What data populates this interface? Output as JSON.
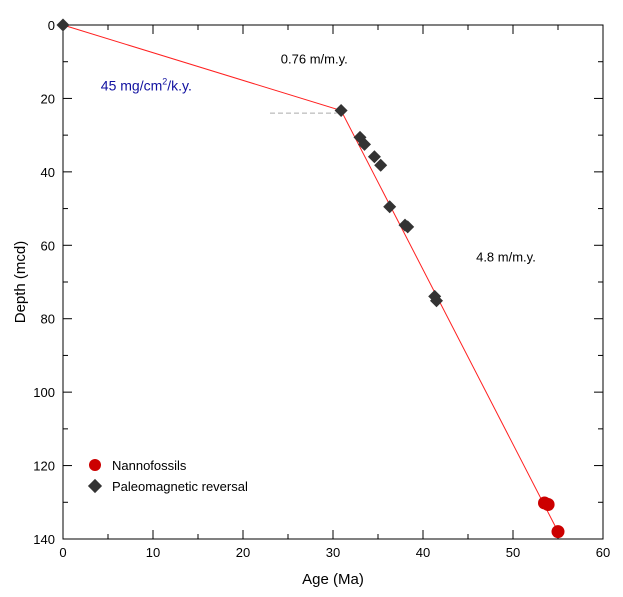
{
  "chart_data": {
    "type": "scatter",
    "xlabel": "Age (Ma)",
    "ylabel": "Depth (mcd)",
    "xlim": [
      0,
      60
    ],
    "ylim": [
      0,
      140
    ],
    "y_inverted": true,
    "xticks": [
      0,
      10,
      20,
      30,
      40,
      50,
      60
    ],
    "yticks": [
      0,
      20,
      40,
      60,
      80,
      100,
      120,
      140
    ],
    "grid": false,
    "legend_position": "bottom-left",
    "series": [
      {
        "name": "Nannofossils",
        "marker": "circle",
        "color": "#cc0000",
        "points": [
          {
            "x": 53.5,
            "y": 130.2
          },
          {
            "x": 53.9,
            "y": 130.6
          },
          {
            "x": 55.0,
            "y": 138.0
          }
        ]
      },
      {
        "name": "Paleomagnetic reversal",
        "marker": "diamond",
        "color": "#333333",
        "points": [
          {
            "x": 0.0,
            "y": 0.0
          },
          {
            "x": 30.9,
            "y": 23.3
          },
          {
            "x": 33.0,
            "y": 30.6
          },
          {
            "x": 33.5,
            "y": 32.5
          },
          {
            "x": 34.6,
            "y": 35.9
          },
          {
            "x": 35.3,
            "y": 38.2
          },
          {
            "x": 36.3,
            "y": 49.5
          },
          {
            "x": 38.0,
            "y": 54.5
          },
          {
            "x": 38.3,
            "y": 55.0
          },
          {
            "x": 41.3,
            "y": 73.9
          },
          {
            "x": 41.5,
            "y": 75.1
          }
        ]
      }
    ],
    "age_model_line": {
      "color": "#ff2020",
      "points": [
        {
          "x": 0.0,
          "y": 0.0
        },
        {
          "x": 30.9,
          "y": 23.3
        },
        {
          "x": 55.0,
          "y": 138.0
        }
      ]
    },
    "reference_dashed_line": {
      "color": "#aaaaaa",
      "points": [
        {
          "x": 23.0,
          "y": 24.0
        },
        {
          "x": 30.4,
          "y": 24.0
        }
      ]
    },
    "annotations": [
      {
        "id": "rate1",
        "text": "0.76 m/m.y.",
        "x": 24.2,
        "y": 10.5,
        "color": "#000000"
      },
      {
        "id": "mar",
        "text_main": "45 mg/cm",
        "text_sup": "2",
        "text_tail": "/k.y.",
        "x": 4.2,
        "y": 17.8,
        "color": "#1010a0"
      },
      {
        "id": "rate2",
        "text": "4.8 m/m.y.",
        "x": 45.9,
        "y": 64.4,
        "color": "#000000"
      }
    ]
  }
}
